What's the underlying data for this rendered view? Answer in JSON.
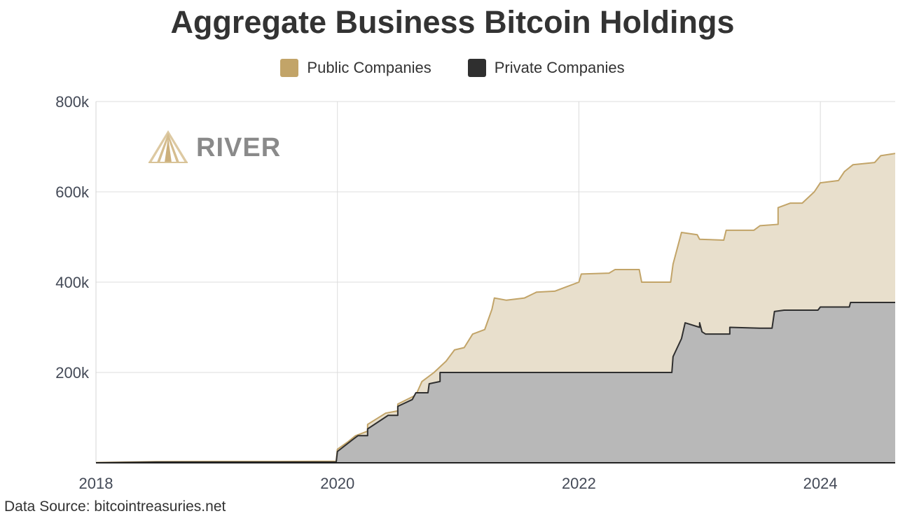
{
  "chart_data": {
    "type": "area",
    "stacked": true,
    "title": "Aggregate Business Bitcoin Holdings",
    "xlabel": "",
    "ylabel": "",
    "x_tick_labels": [
      "2018",
      "2020",
      "2022",
      "2024"
    ],
    "x_ticks": [
      2018,
      2020,
      2022,
      2024
    ],
    "y_tick_labels": [
      "800k",
      "600k",
      "400k",
      "200k"
    ],
    "y_ticks": [
      800000,
      600000,
      400000,
      200000
    ],
    "xlim": [
      2018,
      2024.62
    ],
    "ylim": [
      0,
      800000
    ],
    "grid": true,
    "legend_position": "top-center",
    "source": "Data Source: bitcointreasuries.net",
    "watermark": "RIVER",
    "series": [
      {
        "name": "Public Companies",
        "color": "#c2a468",
        "fill": "#e8dfcc",
        "points": [
          [
            2018.0,
            500
          ],
          [
            2018.5,
            2500
          ],
          [
            2019.0,
            3000
          ],
          [
            2019.5,
            3000
          ],
          [
            2019.99,
            3500
          ],
          [
            2020.0,
            30000
          ],
          [
            2020.08,
            45000
          ],
          [
            2020.15,
            60000
          ],
          [
            2020.25,
            70000
          ],
          [
            2020.25,
            85000
          ],
          [
            2020.4,
            110000
          ],
          [
            2020.5,
            115000
          ],
          [
            2020.5,
            130000
          ],
          [
            2020.65,
            150000
          ],
          [
            2020.7,
            180000
          ],
          [
            2020.8,
            200000
          ],
          [
            2020.9,
            225000
          ],
          [
            2020.97,
            250000
          ],
          [
            2021.05,
            255000
          ],
          [
            2021.12,
            285000
          ],
          [
            2021.22,
            295000
          ],
          [
            2021.28,
            340000
          ],
          [
            2021.3,
            365000
          ],
          [
            2021.4,
            360000
          ],
          [
            2021.55,
            365000
          ],
          [
            2021.65,
            378000
          ],
          [
            2021.8,
            380000
          ],
          [
            2021.9,
            390000
          ],
          [
            2022.0,
            400000
          ],
          [
            2022.02,
            418000
          ],
          [
            2022.25,
            420000
          ],
          [
            2022.3,
            428000
          ],
          [
            2022.5,
            428000
          ],
          [
            2022.52,
            400000
          ],
          [
            2022.76,
            400000
          ],
          [
            2022.78,
            440000
          ],
          [
            2022.85,
            510000
          ],
          [
            2022.98,
            505000
          ],
          [
            2023.0,
            495000
          ],
          [
            2023.2,
            493000
          ],
          [
            2023.22,
            515000
          ],
          [
            2023.45,
            515000
          ],
          [
            2023.5,
            525000
          ],
          [
            2023.65,
            528000
          ],
          [
            2023.65,
            565000
          ],
          [
            2023.75,
            575000
          ],
          [
            2023.85,
            575000
          ],
          [
            2023.95,
            600000
          ],
          [
            2024.0,
            620000
          ],
          [
            2024.15,
            625000
          ],
          [
            2024.2,
            645000
          ],
          [
            2024.27,
            660000
          ],
          [
            2024.45,
            665000
          ],
          [
            2024.5,
            680000
          ],
          [
            2024.62,
            685000
          ]
        ]
      },
      {
        "name": "Private Companies",
        "color": "#2f2f2f",
        "fill": "#b8b8b8",
        "points": [
          [
            2018.0,
            0
          ],
          [
            2018.5,
            1500
          ],
          [
            2019.0,
            1500
          ],
          [
            2019.5,
            1500
          ],
          [
            2019.99,
            1500
          ],
          [
            2020.0,
            25000
          ],
          [
            2020.12,
            50000
          ],
          [
            2020.17,
            60000
          ],
          [
            2020.25,
            60000
          ],
          [
            2020.25,
            75000
          ],
          [
            2020.42,
            105000
          ],
          [
            2020.5,
            105000
          ],
          [
            2020.5,
            125000
          ],
          [
            2020.62,
            140000
          ],
          [
            2020.65,
            155000
          ],
          [
            2020.75,
            155000
          ],
          [
            2020.76,
            175000
          ],
          [
            2020.85,
            180000
          ],
          [
            2020.85,
            200000
          ],
          [
            2022.77,
            200000
          ],
          [
            2022.78,
            235000
          ],
          [
            2022.85,
            275000
          ],
          [
            2022.88,
            310000
          ],
          [
            2023.0,
            300000
          ],
          [
            2023.0,
            310000
          ],
          [
            2023.02,
            290000
          ],
          [
            2023.05,
            285000
          ],
          [
            2023.25,
            285000
          ],
          [
            2023.25,
            300000
          ],
          [
            2023.5,
            298000
          ],
          [
            2023.6,
            298000
          ],
          [
            2023.62,
            335000
          ],
          [
            2023.7,
            338000
          ],
          [
            2023.98,
            338000
          ],
          [
            2024.0,
            345000
          ],
          [
            2024.24,
            345000
          ],
          [
            2024.25,
            355000
          ],
          [
            2024.62,
            355000
          ]
        ]
      }
    ]
  }
}
